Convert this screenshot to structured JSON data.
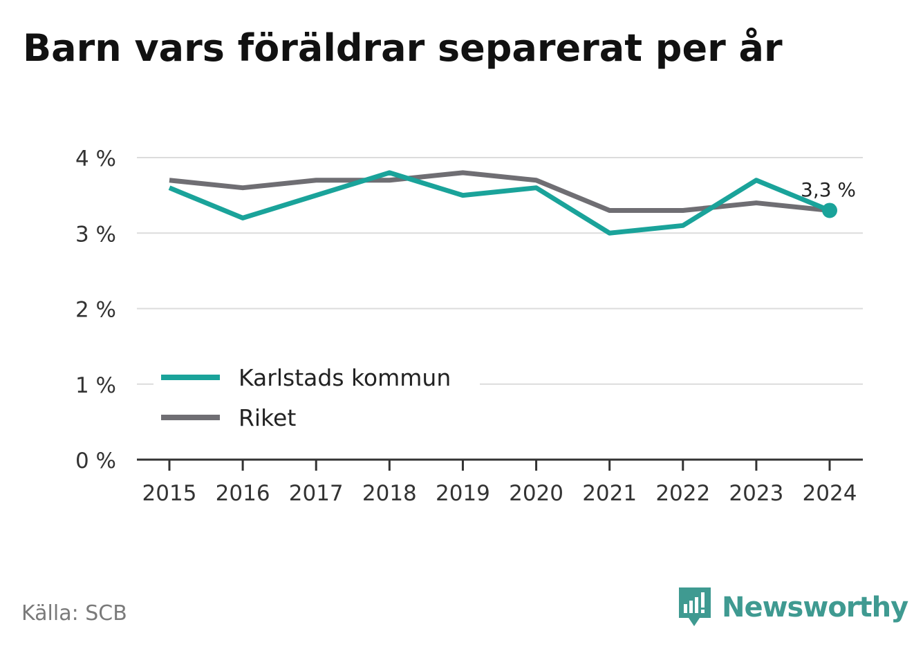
{
  "title": "Barn vars föräldrar separerat per år",
  "source": "Källa: SCB",
  "brand": {
    "name": "Newsworthy",
    "logo_icon": "bar-chart-speech-bubble-icon",
    "color": "#3f9a91"
  },
  "chart_data": {
    "type": "line",
    "x": [
      "2015",
      "2016",
      "2017",
      "2018",
      "2019",
      "2020",
      "2021",
      "2022",
      "2023",
      "2024"
    ],
    "series": [
      {
        "name": "Karlstads kommun",
        "color": "#1aa39a",
        "values": [
          3.6,
          3.2,
          3.5,
          3.8,
          3.5,
          3.6,
          3.0,
          3.1,
          3.7,
          3.3
        ]
      },
      {
        "name": "Riket",
        "color": "#6f6e73",
        "values": [
          3.7,
          3.6,
          3.7,
          3.7,
          3.8,
          3.7,
          3.3,
          3.3,
          3.4,
          3.3
        ]
      }
    ],
    "ylim": [
      0,
      4
    ],
    "y_ticks": [
      {
        "value": 0,
        "label": "0 %"
      },
      {
        "value": 1,
        "label": "1 %"
      },
      {
        "value": 2,
        "label": "2 %"
      },
      {
        "value": 3,
        "label": "3 %"
      },
      {
        "value": 4,
        "label": "4 %"
      }
    ],
    "grid": true,
    "legend_position": "bottom-left",
    "annotation": {
      "series": 0,
      "index": 9,
      "label": "3,3 %"
    }
  }
}
